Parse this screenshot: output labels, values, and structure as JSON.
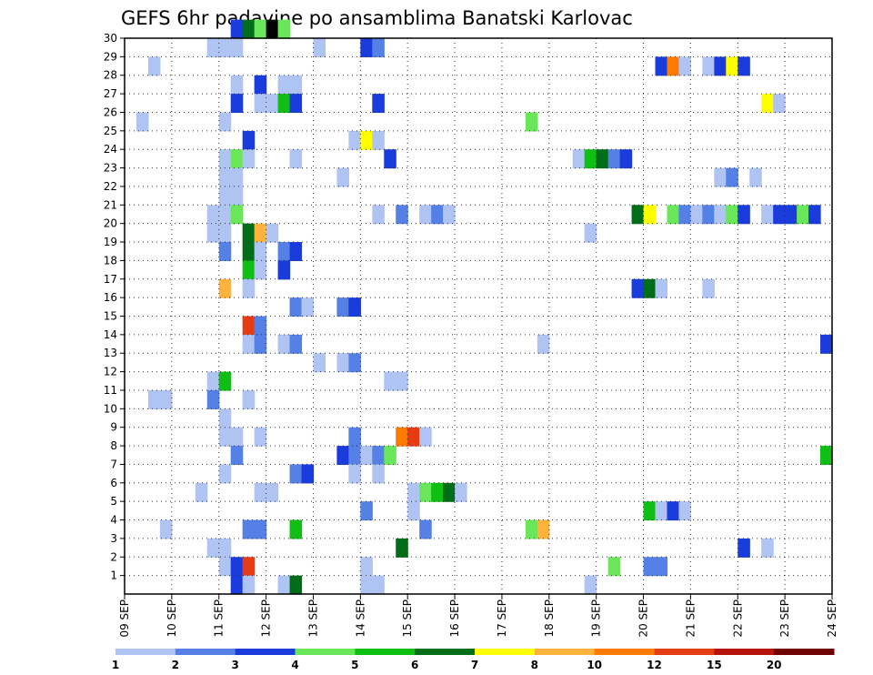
{
  "chart_data": {
    "type": "heatmap",
    "title": "GEFS 6hr padavine po ansamblima Banatski Karlovac",
    "x_tick_labels": [
      "09 SEP",
      "10 SEP",
      "11 SEP",
      "12 SEP",
      "13 SEP",
      "14 SEP",
      "15 SEP",
      "16 SEP",
      "17 SEP",
      "18 SEP",
      "19 SEP",
      "20 SEP",
      "21 SEP",
      "22 SEP",
      "23 SEP",
      "24 SEP"
    ],
    "y_tick_labels": [
      "1",
      "2",
      "3",
      "4",
      "5",
      "6",
      "7",
      "8",
      "9",
      "10",
      "11",
      "12",
      "13",
      "14",
      "15",
      "16",
      "17",
      "18",
      "19",
      "20",
      "21",
      "22",
      "23",
      "24",
      "25",
      "26",
      "27",
      "28",
      "29",
      "30"
    ],
    "xlim_days": [
      0,
      15
    ],
    "steps_per_day": 4,
    "y_range": [
      0,
      30
    ],
    "grid": "dotted",
    "colorbar": {
      "labels": [
        "1",
        "2",
        "3",
        "4",
        "5",
        "6",
        "7",
        "8",
        "10",
        "12",
        "15",
        "20"
      ],
      "colors": [
        "#b0c4f4",
        "#5580e6",
        "#1a3cdc",
        "#6ae65a",
        "#10bf14",
        "#006e19",
        "#ffff00",
        "#ffb33c",
        "#ff7a00",
        "#e63c14",
        "#b4140a",
        "#6e0000"
      ]
    },
    "cells": [
      [
        30,
        9,
        2
      ],
      [
        30,
        10,
        5
      ],
      [
        30,
        11,
        3
      ],
      [
        30,
        12,
        12
      ],
      [
        30,
        13,
        3
      ],
      [
        29,
        7,
        0
      ],
      [
        29,
        8,
        0
      ],
      [
        29,
        9,
        0
      ],
      [
        29,
        16,
        0
      ],
      [
        29,
        20,
        2
      ],
      [
        29,
        21,
        1
      ],
      [
        28,
        2,
        0
      ],
      [
        28,
        45,
        2
      ],
      [
        28,
        46,
        8
      ],
      [
        28,
        47,
        0
      ],
      [
        28,
        49,
        0
      ],
      [
        28,
        50,
        2
      ],
      [
        28,
        51,
        6
      ],
      [
        28,
        52,
        2
      ],
      [
        27,
        9,
        0
      ],
      [
        27,
        11,
        2
      ],
      [
        27,
        13,
        0
      ],
      [
        27,
        14,
        0
      ],
      [
        26,
        9,
        2
      ],
      [
        26,
        11,
        0
      ],
      [
        26,
        12,
        0
      ],
      [
        26,
        13,
        4
      ],
      [
        26,
        14,
        2
      ],
      [
        26,
        21,
        2
      ],
      [
        26,
        54,
        6
      ],
      [
        26,
        55,
        0
      ],
      [
        25,
        1,
        0
      ],
      [
        25,
        8,
        0
      ],
      [
        25,
        34,
        3
      ],
      [
        24,
        10,
        2
      ],
      [
        24,
        19,
        0
      ],
      [
        24,
        20,
        6
      ],
      [
        24,
        21,
        0
      ],
      [
        23,
        8,
        0
      ],
      [
        23,
        9,
        3
      ],
      [
        23,
        10,
        0
      ],
      [
        23,
        14,
        0
      ],
      [
        23,
        22,
        2
      ],
      [
        23,
        38,
        0
      ],
      [
        23,
        39,
        4
      ],
      [
        23,
        40,
        5
      ],
      [
        23,
        41,
        1
      ],
      [
        23,
        42,
        2
      ],
      [
        22,
        8,
        0
      ],
      [
        22,
        9,
        0
      ],
      [
        22,
        18,
        0
      ],
      [
        22,
        50,
        0
      ],
      [
        22,
        51,
        1
      ],
      [
        22,
        53,
        0
      ],
      [
        21,
        8,
        0
      ],
      [
        21,
        9,
        0
      ],
      [
        20,
        7,
        0
      ],
      [
        20,
        8,
        0
      ],
      [
        20,
        9,
        3
      ],
      [
        20,
        21,
        0
      ],
      [
        20,
        23,
        1
      ],
      [
        20,
        25,
        0
      ],
      [
        20,
        26,
        1
      ],
      [
        20,
        27,
        0
      ],
      [
        20,
        43,
        5
      ],
      [
        20,
        44,
        6
      ],
      [
        20,
        46,
        3
      ],
      [
        20,
        47,
        1
      ],
      [
        20,
        48,
        0
      ],
      [
        20,
        49,
        1
      ],
      [
        20,
        50,
        0
      ],
      [
        20,
        51,
        3
      ],
      [
        20,
        52,
        2
      ],
      [
        20,
        54,
        0
      ],
      [
        20,
        55,
        2
      ],
      [
        20,
        56,
        2
      ],
      [
        20,
        57,
        3
      ],
      [
        20,
        58,
        2
      ],
      [
        19,
        7,
        0
      ],
      [
        19,
        8,
        0
      ],
      [
        19,
        10,
        5
      ],
      [
        19,
        11,
        7
      ],
      [
        19,
        12,
        0
      ],
      [
        19,
        39,
        0
      ],
      [
        18,
        8,
        1
      ],
      [
        18,
        10,
        5
      ],
      [
        18,
        11,
        0
      ],
      [
        18,
        13,
        1
      ],
      [
        18,
        14,
        2
      ],
      [
        17,
        10,
        4
      ],
      [
        17,
        11,
        0
      ],
      [
        17,
        13,
        2
      ],
      [
        16,
        8,
        7
      ],
      [
        16,
        10,
        0
      ],
      [
        16,
        43,
        2
      ],
      [
        16,
        44,
        5
      ],
      [
        16,
        45,
        0
      ],
      [
        16,
        49,
        0
      ],
      [
        15,
        14,
        1
      ],
      [
        15,
        15,
        0
      ],
      [
        15,
        18,
        1
      ],
      [
        15,
        19,
        2
      ],
      [
        14,
        10,
        9
      ],
      [
        14,
        11,
        1
      ],
      [
        13,
        10,
        0
      ],
      [
        13,
        11,
        1
      ],
      [
        13,
        13,
        0
      ],
      [
        13,
        14,
        1
      ],
      [
        13,
        35,
        0
      ],
      [
        13,
        59,
        2
      ],
      [
        12,
        16,
        0
      ],
      [
        12,
        18,
        0
      ],
      [
        12,
        19,
        1
      ],
      [
        11,
        7,
        0
      ],
      [
        11,
        8,
        4
      ],
      [
        11,
        22,
        0
      ],
      [
        11,
        23,
        0
      ],
      [
        10,
        2,
        0
      ],
      [
        10,
        3,
        0
      ],
      [
        10,
        7,
        1
      ],
      [
        10,
        10,
        0
      ],
      [
        9,
        8,
        0
      ],
      [
        8,
        8,
        0
      ],
      [
        8,
        9,
        0
      ],
      [
        8,
        11,
        0
      ],
      [
        8,
        19,
        1
      ],
      [
        8,
        23,
        8
      ],
      [
        8,
        24,
        9
      ],
      [
        8,
        25,
        0
      ],
      [
        7,
        9,
        1
      ],
      [
        7,
        18,
        2
      ],
      [
        7,
        19,
        1
      ],
      [
        7,
        20,
        0
      ],
      [
        7,
        21,
        1
      ],
      [
        7,
        22,
        3
      ],
      [
        7,
        59,
        4
      ],
      [
        6,
        8,
        0
      ],
      [
        6,
        14,
        1
      ],
      [
        6,
        15,
        2
      ],
      [
        6,
        19,
        0
      ],
      [
        6,
        21,
        0
      ],
      [
        5,
        6,
        0
      ],
      [
        5,
        11,
        0
      ],
      [
        5,
        12,
        0
      ],
      [
        5,
        24,
        0
      ],
      [
        5,
        25,
        3
      ],
      [
        5,
        26,
        4
      ],
      [
        5,
        27,
        5
      ],
      [
        5,
        28,
        0
      ],
      [
        4,
        20,
        1
      ],
      [
        4,
        24,
        0
      ],
      [
        4,
        44,
        4
      ],
      [
        4,
        45,
        0
      ],
      [
        4,
        46,
        2
      ],
      [
        4,
        47,
        0
      ],
      [
        3,
        3,
        0
      ],
      [
        3,
        10,
        1
      ],
      [
        3,
        11,
        1
      ],
      [
        3,
        14,
        4
      ],
      [
        3,
        25,
        1
      ],
      [
        3,
        34,
        3
      ],
      [
        3,
        35,
        7
      ],
      [
        2,
        7,
        0
      ],
      [
        2,
        8,
        0
      ],
      [
        2,
        23,
        5
      ],
      [
        2,
        52,
        2
      ],
      [
        2,
        54,
        0
      ],
      [
        1,
        8,
        0
      ],
      [
        1,
        9,
        2
      ],
      [
        1,
        10,
        9
      ],
      [
        1,
        20,
        0
      ],
      [
        1,
        41,
        3
      ],
      [
        1,
        44,
        1
      ],
      [
        1,
        45,
        1
      ],
      [
        0,
        9,
        2
      ],
      [
        0,
        10,
        0
      ],
      [
        0,
        13,
        0
      ],
      [
        0,
        14,
        5
      ],
      [
        0,
        20,
        0
      ],
      [
        0,
        21,
        0
      ],
      [
        0,
        39,
        0
      ]
    ]
  }
}
